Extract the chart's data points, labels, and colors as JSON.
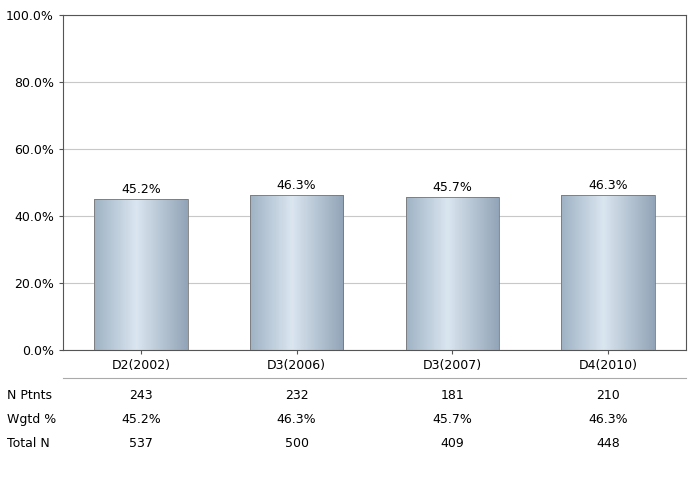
{
  "categories": [
    "D2(2002)",
    "D3(2006)",
    "D3(2007)",
    "D4(2010)"
  ],
  "values": [
    45.2,
    46.3,
    45.7,
    46.3
  ],
  "value_labels": [
    "45.2%",
    "46.3%",
    "45.7%",
    "46.3%"
  ],
  "n_ptnts": [
    "243",
    "232",
    "181",
    "210"
  ],
  "wgtd_pct": [
    "45.2%",
    "46.3%",
    "45.7%",
    "46.3%"
  ],
  "total_n": [
    "537",
    "500",
    "409",
    "448"
  ],
  "ylim": [
    0,
    100
  ],
  "yticks": [
    0,
    20,
    40,
    60,
    80,
    100
  ],
  "ytick_labels": [
    "0.0%",
    "20.0%",
    "40.0%",
    "60.0%",
    "80.0%",
    "100.0%"
  ],
  "background_color": "#ffffff",
  "plot_bg_color": "#ffffff",
  "grid_color": "#c8c8c8",
  "label_fontsize": 9,
  "tick_fontsize": 9,
  "table_fontsize": 9,
  "bar_width": 0.6,
  "row_names": [
    "N Ptnts",
    "Wgtd %",
    "Total N"
  ]
}
